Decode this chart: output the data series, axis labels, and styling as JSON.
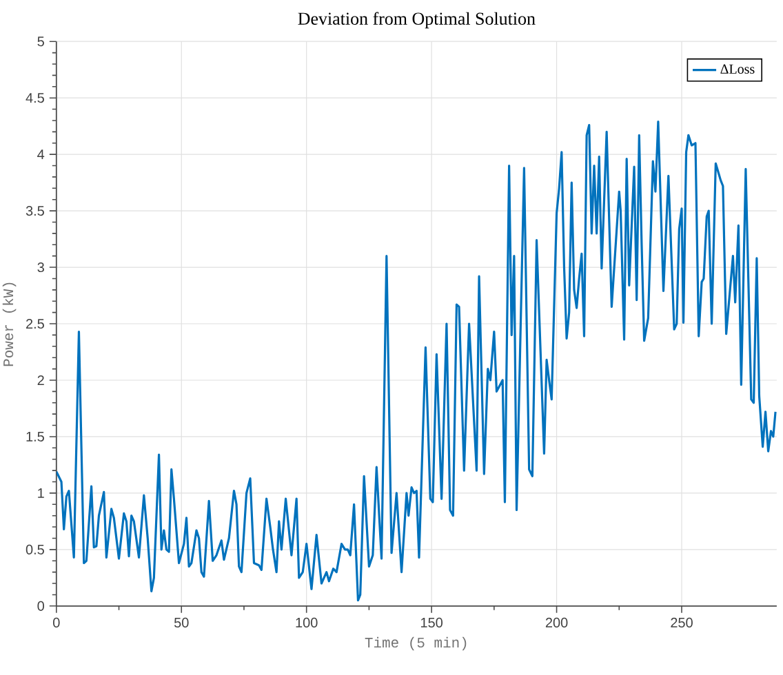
{
  "chart_data": {
    "type": "line",
    "title": "Deviation from Optimal Solution",
    "xlabel": "Time (5 min)",
    "ylabel": "Power (kW)",
    "x": [
      0,
      2,
      3,
      4,
      5,
      7,
      9,
      11,
      12,
      14,
      15,
      16,
      17,
      19,
      20,
      22,
      23,
      25,
      27,
      28,
      29,
      30,
      31,
      33,
      35,
      36.5,
      38,
      39,
      41,
      42,
      43,
      44,
      45,
      46,
      47,
      49,
      51,
      52,
      53,
      54,
      56,
      57,
      58,
      59,
      61,
      62.5,
      64,
      66,
      67,
      69,
      71,
      72,
      73,
      74,
      76,
      77.5,
      79,
      81,
      82,
      84,
      85.5,
      86.6,
      88,
      89,
      90,
      91.7,
      94,
      96,
      97,
      98.5,
      100,
      102,
      104,
      106,
      108,
      109,
      110.7,
      112,
      114,
      115.4,
      116.5,
      117.5,
      119,
      120.6,
      121.5,
      123,
      125,
      126.5,
      128,
      130,
      132,
      134,
      136,
      138,
      140,
      140.8,
      142,
      143,
      144,
      145,
      147.6,
      149.5,
      150.5,
      152,
      154,
      156,
      157.4,
      158.6,
      160,
      161,
      163,
      165,
      168,
      169,
      171,
      172.5,
      173.5,
      175,
      176,
      178.4,
      179.3,
      181,
      182,
      183,
      184,
      187,
      189,
      190.3,
      192,
      195,
      196,
      197,
      198,
      200,
      201,
      202,
      203,
      204,
      205,
      206,
      207,
      208,
      209,
      210,
      211,
      212,
      213,
      214,
      215,
      216,
      217,
      218,
      220,
      222,
      225,
      225.6,
      227,
      228,
      229,
      231,
      232,
      233,
      234,
      235,
      236.6,
      238.5,
      239.5,
      240.6,
      242.7,
      244.7,
      247,
      248,
      249,
      250,
      250.7,
      251.8,
      252.7,
      254,
      255.5,
      256.8,
      258,
      258.8,
      260,
      260.8,
      262,
      263.6,
      265.6,
      266.5,
      267.8,
      270.5,
      271.4,
      272.7,
      273.8,
      275.6,
      277.8,
      278.8,
      280,
      281,
      282.4,
      283.5,
      284.6,
      285.7,
      286.6,
      287.5
    ],
    "series": [
      {
        "name": "ΔLoss",
        "color": "#0072bd",
        "values": [
          1.19,
          1.1,
          0.68,
          0.97,
          1.02,
          0.43,
          2.43,
          0.38,
          0.4,
          1.06,
          0.52,
          0.53,
          0.8,
          1.01,
          0.43,
          0.86,
          0.78,
          0.42,
          0.82,
          0.75,
          0.44,
          0.8,
          0.75,
          0.43,
          0.98,
          0.6,
          0.13,
          0.25,
          1.34,
          0.5,
          0.67,
          0.5,
          0.48,
          1.21,
          0.95,
          0.38,
          0.55,
          0.78,
          0.35,
          0.38,
          0.67,
          0.6,
          0.3,
          0.26,
          0.93,
          0.4,
          0.45,
          0.58,
          0.41,
          0.6,
          1.02,
          0.9,
          0.35,
          0.3,
          1.0,
          1.13,
          0.38,
          0.36,
          0.32,
          0.95,
          0.7,
          0.5,
          0.3,
          0.75,
          0.5,
          0.95,
          0.45,
          0.95,
          0.25,
          0.3,
          0.55,
          0.15,
          0.63,
          0.2,
          0.3,
          0.22,
          0.33,
          0.3,
          0.55,
          0.5,
          0.5,
          0.45,
          0.9,
          0.05,
          0.1,
          1.15,
          0.35,
          0.45,
          1.23,
          0.42,
          3.1,
          0.47,
          1.0,
          0.3,
          1.0,
          0.8,
          1.05,
          1.0,
          1.02,
          0.43,
          2.29,
          0.95,
          0.92,
          2.23,
          0.95,
          2.5,
          0.85,
          0.8,
          2.67,
          2.65,
          1.2,
          2.5,
          1.2,
          2.92,
          1.17,
          2.1,
          2.0,
          2.43,
          1.9,
          2.0,
          0.92,
          3.9,
          2.4,
          3.1,
          0.85,
          3.88,
          1.21,
          1.15,
          3.24,
          1.35,
          2.18,
          2.0,
          1.83,
          3.48,
          3.7,
          4.02,
          3.0,
          2.37,
          2.6,
          3.75,
          2.8,
          2.64,
          2.9,
          3.12,
          2.39,
          4.17,
          4.26,
          3.3,
          3.9,
          3.3,
          3.98,
          2.99,
          4.2,
          2.65,
          3.67,
          3.5,
          2.36,
          3.96,
          2.84,
          3.89,
          2.71,
          4.17,
          3.2,
          2.35,
          2.55,
          3.94,
          3.67,
          4.29,
          2.79,
          3.81,
          2.45,
          2.5,
          3.34,
          3.52,
          2.51,
          4.02,
          4.17,
          4.08,
          4.1,
          2.39,
          2.87,
          2.9,
          3.45,
          3.5,
          2.5,
          3.92,
          3.77,
          3.72,
          2.41,
          3.1,
          2.69,
          3.37,
          1.96,
          3.87,
          1.83,
          1.8,
          3.08,
          1.86,
          1.41,
          1.72,
          1.37,
          1.55,
          1.5,
          1.72
        ]
      }
    ],
    "xlim": [
      0,
      288
    ],
    "ylim": [
      0,
      5
    ],
    "xticks": [
      0,
      50,
      100,
      150,
      200,
      250
    ],
    "yticks": [
      0,
      0.5,
      1,
      1.5,
      2,
      2.5,
      3,
      3.5,
      4,
      4.5,
      5
    ],
    "grid": true,
    "legend": "top right"
  }
}
